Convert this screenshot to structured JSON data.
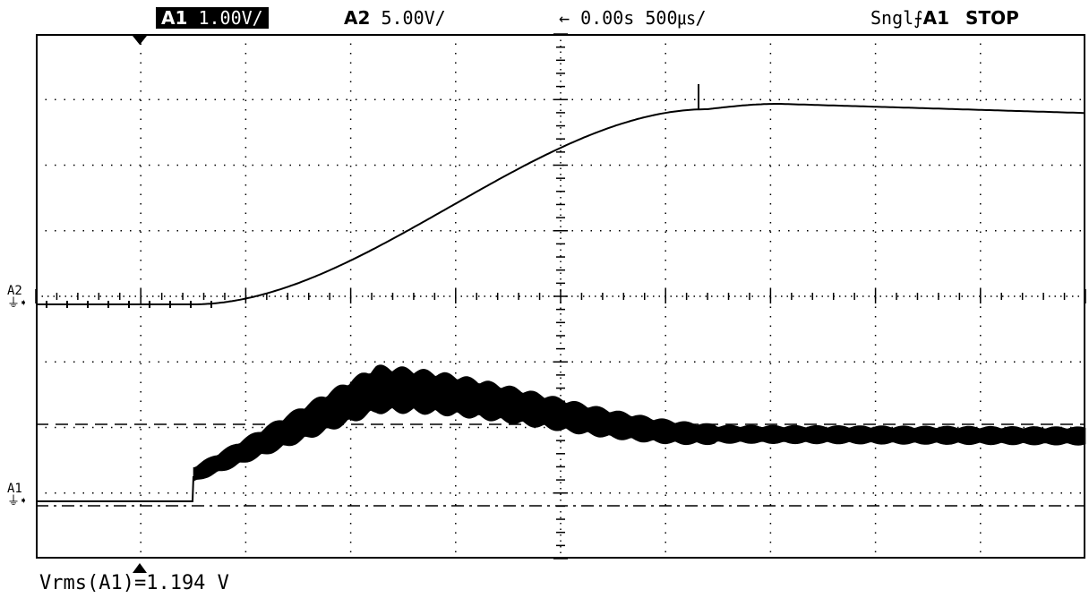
{
  "header": {
    "a1": {
      "name": "A1",
      "scale": "1.00V/"
    },
    "a2": {
      "name": "A2",
      "scale": "5.00V/"
    },
    "time": {
      "arrow": "←",
      "delay": "0.00s",
      "timebase": "500㎲/"
    },
    "trigger": {
      "mode": "Sngl",
      "slope_icon": "rising-edge-icon",
      "source": "A1"
    },
    "run_state": "STOP"
  },
  "channel_markers": {
    "a2": "A2",
    "a1": "A1"
  },
  "measurement": "Vrms(A1)=1.194 V",
  "colors": {
    "background": "#ffffff",
    "trace": "#000000",
    "grid": "#000000"
  }
}
